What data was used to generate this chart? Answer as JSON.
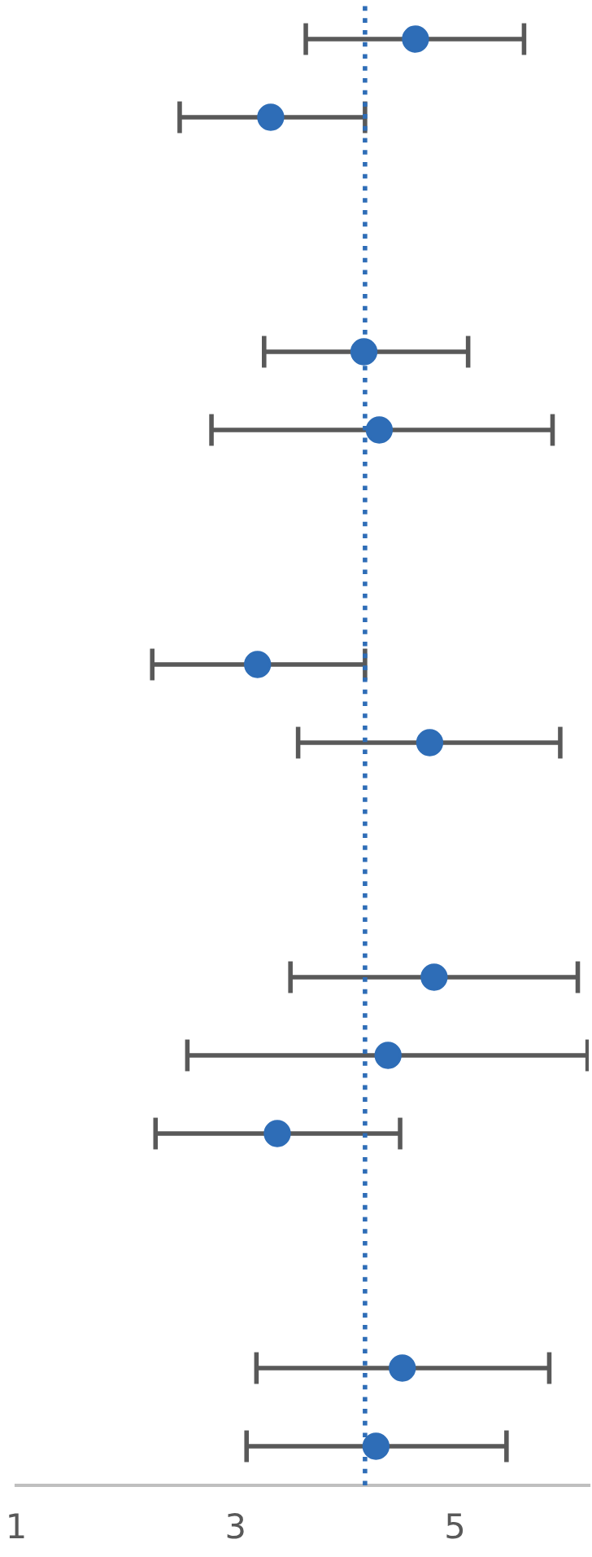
{
  "chart_data": {
    "type": "scatter",
    "orientation": "horizontal",
    "categories": [
      null,
      null,
      null,
      null,
      null,
      null,
      null,
      null,
      null,
      null,
      null,
      null,
      null,
      null,
      null,
      null,
      null,
      null,
      null
    ],
    "series": [
      {
        "color": "#2e6db7",
        "values": [
          4.64,
          3.32,
          null,
          null,
          4.17,
          4.31,
          null,
          null,
          3.2,
          4.77,
          null,
          null,
          4.81,
          4.39,
          3.38,
          null,
          null,
          4.52,
          4.28
        ],
        "errors": [
          [
            3.64,
            5.63
          ],
          [
            2.49,
            4.18
          ],
          null,
          null,
          [
            3.26,
            5.12
          ],
          [
            2.78,
            5.89
          ],
          null,
          null,
          [
            2.24,
            4.18
          ],
          [
            3.57,
            5.96
          ],
          null,
          null,
          [
            3.5,
            6.12
          ],
          [
            2.56,
            6.21
          ],
          [
            2.27,
            4.5
          ],
          null,
          null,
          [
            3.19,
            5.86
          ],
          [
            3.1,
            5.47
          ]
        ]
      }
    ],
    "xlim": [
      1,
      6.22
    ],
    "xticks": [
      1,
      3,
      5
    ],
    "marker": "circle",
    "ref_lines": [
      {
        "axis": "x",
        "value": 4.18,
        "color": "#2e6db7",
        "line_style": "dotted"
      }
    ]
  }
}
